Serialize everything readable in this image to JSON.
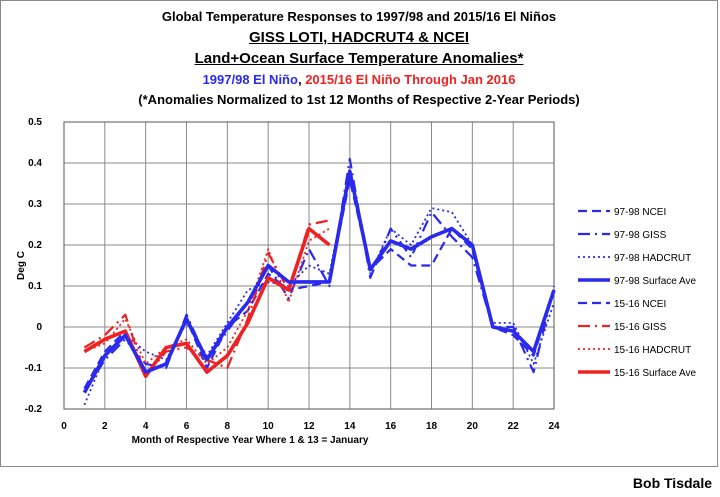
{
  "title": {
    "line1": "Global Temperature Responses to 1997/98 and 2015/16 El Niños",
    "line2": "GISS LOTI, HADCRUT4 & NCEI",
    "line3": "Land+Ocean Surface Temperature Anomalies*",
    "line4_part1": "1997/98 El Niño",
    "line4_sep": ", ",
    "line4_part2": "2015/16 El Niño Through Jan 2016",
    "line5": "(*Anomalies Normalized to 1st 12 Months of Respective 2-Year Periods)"
  },
  "credit": "Bob Tisdale",
  "colors": {
    "blue": "#2a2aee",
    "red": "#ee2222",
    "title_blue": "#2a2aee",
    "title_red": "#ee2222"
  },
  "chart_data": {
    "type": "line",
    "xlabel": "Month of Respective Year Where 1 & 13 = January",
    "ylabel": "Deg C",
    "xlim": [
      0,
      24
    ],
    "ylim": [
      -0.2,
      0.5
    ],
    "x_ticks": [
      "0",
      "2",
      "4",
      "6",
      "8",
      "10",
      "12",
      "14",
      "16",
      "18",
      "20",
      "22",
      "24"
    ],
    "y_ticks": [
      "-0.2",
      "-0.1",
      "0",
      "0.1",
      "0.2",
      "0.3",
      "0.4",
      "0.5"
    ],
    "grid": true,
    "legend_position": "right",
    "series": [
      {
        "name": "97-98  NCEI",
        "color": "#2a2aee",
        "style": "dash",
        "x": [
          1,
          2,
          3,
          4,
          5,
          6,
          7,
          8,
          9,
          10,
          11,
          12,
          13,
          14,
          15,
          16,
          17,
          18,
          19,
          20,
          21,
          22,
          23,
          24
        ],
        "y": [
          -0.15,
          -0.06,
          -0.01,
          -0.11,
          -0.09,
          0.02,
          -0.1,
          0.0,
          0.04,
          0.13,
          0.09,
          0.1,
          0.11,
          0.36,
          0.14,
          0.19,
          0.15,
          0.15,
          0.24,
          0.19,
          0.0,
          -0.02,
          -0.07,
          0.09
        ]
      },
      {
        "name": "97-98  GISS",
        "color": "#2a2aee",
        "style": "dashdot",
        "x": [
          1,
          2,
          3,
          4,
          5,
          6,
          7,
          8,
          9,
          10,
          11,
          12,
          13,
          14,
          15,
          16,
          17,
          18,
          19,
          20,
          21,
          22,
          23,
          24
        ],
        "y": [
          -0.16,
          -0.08,
          -0.03,
          -0.09,
          -0.1,
          0.03,
          -0.08,
          -0.01,
          0.06,
          0.15,
          0.07,
          0.19,
          0.1,
          0.41,
          0.12,
          0.24,
          0.17,
          0.28,
          0.22,
          0.17,
          0.0,
          0.0,
          -0.11,
          0.1
        ]
      },
      {
        "name": "97-98  HADCRUT",
        "color": "#2a2aee",
        "style": "dot",
        "x": [
          1,
          2,
          3,
          4,
          5,
          6,
          7,
          8,
          9,
          10,
          11,
          12,
          13,
          14,
          15,
          16,
          17,
          18,
          19,
          20,
          21,
          22,
          23,
          24
        ],
        "y": [
          -0.19,
          -0.07,
          -0.02,
          -0.06,
          -0.08,
          0.01,
          -0.07,
          0.01,
          0.09,
          0.11,
          0.1,
          0.15,
          0.13,
          0.38,
          0.13,
          0.24,
          0.2,
          0.29,
          0.28,
          0.2,
          0.01,
          0.01,
          -0.09,
          0.06
        ]
      },
      {
        "name": "97-98 Surface Ave",
        "color": "#2a2aee",
        "style": "solid-thick",
        "x": [
          1,
          2,
          3,
          4,
          5,
          6,
          7,
          8,
          9,
          10,
          11,
          12,
          13,
          14,
          15,
          16,
          17,
          18,
          19,
          20,
          21,
          22,
          23,
          24
        ],
        "y": [
          -0.16,
          -0.07,
          -0.02,
          -0.11,
          -0.09,
          0.02,
          -0.08,
          0.0,
          0.06,
          0.15,
          0.11,
          0.11,
          0.11,
          0.38,
          0.14,
          0.21,
          0.19,
          0.22,
          0.24,
          0.2,
          0.0,
          -0.01,
          -0.06,
          0.09
        ]
      },
      {
        "name": "15-16  NCEI",
        "color": "#2a2aee",
        "style": "dash",
        "x": [],
        "y": []
      },
      {
        "name": "15-16  GISS",
        "color": "#ee2222",
        "style": "dashdot",
        "x": [
          1,
          2,
          3,
          4,
          5,
          6,
          7,
          8,
          9,
          10,
          11,
          12,
          13
        ],
        "y": [
          -0.05,
          -0.02,
          0.03,
          -0.12,
          -0.06,
          -0.05,
          -0.08,
          -0.1,
          0.02,
          0.18,
          0.09,
          0.25,
          0.26
        ]
      },
      {
        "name": "15-16  HADCRUT",
        "color": "#ee2222",
        "style": "dot",
        "x": [
          1,
          2,
          3,
          4,
          5,
          6,
          7,
          8,
          9,
          10,
          11,
          12,
          13
        ],
        "y": [
          -0.06,
          -0.04,
          0.02,
          -0.09,
          -0.05,
          -0.03,
          -0.09,
          -0.05,
          0.04,
          0.19,
          0.06,
          0.21,
          0.24
        ]
      },
      {
        "name": "15-16 Surface Ave",
        "color": "#ee2222",
        "style": "solid-thick",
        "x": [
          1,
          2,
          3,
          4,
          5,
          6,
          7,
          8,
          9,
          10,
          11,
          12,
          13
        ],
        "y": [
          -0.06,
          -0.03,
          -0.01,
          -0.12,
          -0.05,
          -0.04,
          -0.11,
          -0.07,
          0.01,
          0.12,
          0.09,
          0.24,
          0.2
        ]
      }
    ]
  }
}
